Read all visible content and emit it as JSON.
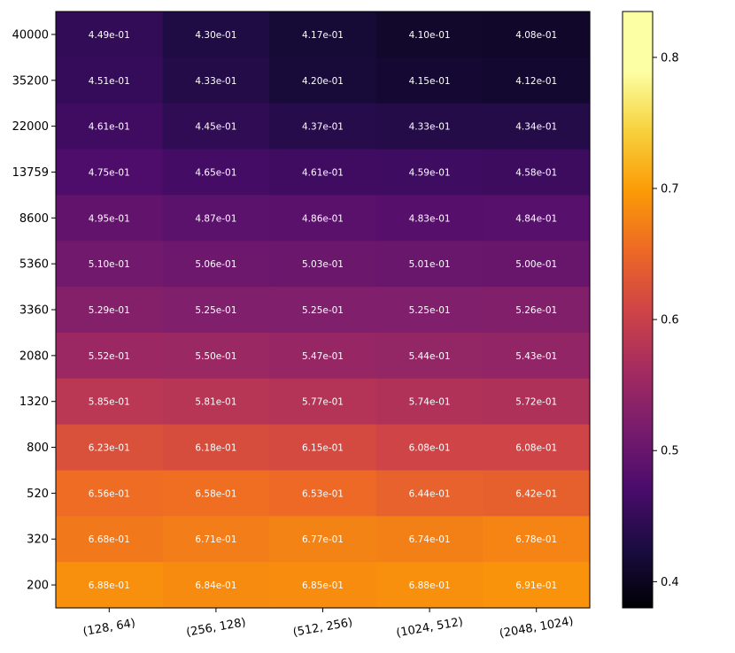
{
  "chart_data": {
    "type": "heatmap",
    "title": "",
    "xlabel": "",
    "ylabel": "",
    "x_categories": [
      "(128, 64)",
      "(256, 128)",
      "(512, 256)",
      "(1024, 512)",
      "(2048, 1024)"
    ],
    "y_categories": [
      "40000",
      "35200",
      "22000",
      "13759",
      "8600",
      "5360",
      "3360",
      "2080",
      "1320",
      "800",
      "520",
      "320",
      "200"
    ],
    "values": [
      [
        0.449,
        0.43,
        0.417,
        0.41,
        0.408
      ],
      [
        0.451,
        0.433,
        0.42,
        0.415,
        0.412
      ],
      [
        0.461,
        0.445,
        0.437,
        0.433,
        0.434
      ],
      [
        0.475,
        0.465,
        0.461,
        0.459,
        0.458
      ],
      [
        0.495,
        0.487,
        0.486,
        0.483,
        0.484
      ],
      [
        0.51,
        0.506,
        0.503,
        0.501,
        0.5
      ],
      [
        0.529,
        0.525,
        0.525,
        0.525,
        0.526
      ],
      [
        0.552,
        0.55,
        0.547,
        0.544,
        0.543
      ],
      [
        0.585,
        0.581,
        0.577,
        0.574,
        0.572
      ],
      [
        0.623,
        0.618,
        0.615,
        0.608,
        0.608
      ],
      [
        0.656,
        0.658,
        0.653,
        0.644,
        0.642
      ],
      [
        0.668,
        0.671,
        0.677,
        0.674,
        0.678
      ],
      [
        0.688,
        0.684,
        0.685,
        0.688,
        0.691
      ]
    ],
    "cell_labels": [
      [
        "4.49e-01",
        "4.30e-01",
        "4.17e-01",
        "4.10e-01",
        "4.08e-01"
      ],
      [
        "4.51e-01",
        "4.33e-01",
        "4.20e-01",
        "4.15e-01",
        "4.12e-01"
      ],
      [
        "4.61e-01",
        "4.45e-01",
        "4.37e-01",
        "4.33e-01",
        "4.34e-01"
      ],
      [
        "4.75e-01",
        "4.65e-01",
        "4.61e-01",
        "4.59e-01",
        "4.58e-01"
      ],
      [
        "4.95e-01",
        "4.87e-01",
        "4.86e-01",
        "4.83e-01",
        "4.84e-01"
      ],
      [
        "5.10e-01",
        "5.06e-01",
        "5.03e-01",
        "5.01e-01",
        "5.00e-01"
      ],
      [
        "5.29e-01",
        "5.25e-01",
        "5.25e-01",
        "5.25e-01",
        "5.26e-01"
      ],
      [
        "5.52e-01",
        "5.50e-01",
        "5.47e-01",
        "5.44e-01",
        "5.43e-01"
      ],
      [
        "5.85e-01",
        "5.81e-01",
        "5.77e-01",
        "5.74e-01",
        "5.72e-01"
      ],
      [
        "6.23e-01",
        "6.18e-01",
        "6.15e-01",
        "6.08e-01",
        "6.08e-01"
      ],
      [
        "6.56e-01",
        "6.58e-01",
        "6.53e-01",
        "6.44e-01",
        "6.42e-01"
      ],
      [
        "6.68e-01",
        "6.71e-01",
        "6.77e-01",
        "6.74e-01",
        "6.78e-01"
      ],
      [
        "6.88e-01",
        "6.84e-01",
        "6.85e-01",
        "6.88e-01",
        "6.91e-01"
      ]
    ],
    "colormap": "inferno",
    "colorbar": {
      "range": [
        0.38,
        0.835
      ],
      "ticks": [
        0.4,
        0.5,
        0.6,
        0.7,
        0.8
      ],
      "tick_labels": [
        "0.4",
        "0.5",
        "0.6",
        "0.7",
        "0.8"
      ]
    },
    "x_tick_rotation_deg": 10,
    "grid": false,
    "legend": "colorbar-right"
  }
}
